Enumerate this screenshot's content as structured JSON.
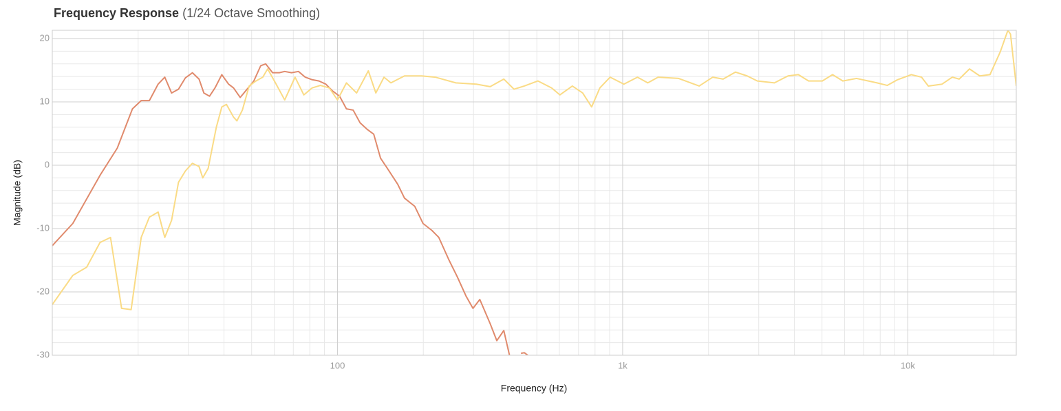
{
  "chart_data": {
    "type": "line",
    "title": "Frequency Response",
    "subtitle": "(1/24 Octave Smoothing)",
    "x_label": "Frequency (Hz)",
    "y_label": "Magnitude (dB)",
    "log_x": true,
    "grid": true,
    "xlim": [
      10,
      24000
    ],
    "ylim": [
      -30,
      21.3
    ],
    "xticks": [
      {
        "value": 100,
        "label": "100"
      },
      {
        "value": 1000,
        "label": "1k"
      },
      {
        "value": 10000,
        "label": "10k"
      }
    ],
    "x_minor_ticks": [
      20,
      30,
      40,
      50,
      60,
      70,
      80,
      90,
      200,
      300,
      400,
      500,
      600,
      700,
      800,
      900,
      2000,
      3000,
      4000,
      5000,
      6000,
      7000,
      8000,
      9000,
      20000
    ],
    "yticks": [
      -30,
      -20,
      -10,
      0,
      10,
      20
    ],
    "y_minor_ticks": [
      -28,
      -26,
      -24,
      -22,
      -18,
      -16,
      -14,
      -12,
      -8,
      -6,
      -4,
      -2,
      2,
      4,
      6,
      8,
      12,
      14,
      16,
      18
    ],
    "series": [
      {
        "color": "#e08a6c",
        "x": [
          10,
          11.8,
          14.7,
          16.9,
          19.1,
          20.5,
          21.9,
          23.5,
          24.8,
          26.2,
          27.7,
          29.3,
          31,
          32.7,
          34,
          35.6,
          37.2,
          39.3,
          41.5,
          43.2,
          45.6,
          48.2,
          50.9,
          53.8,
          56,
          59.2,
          62.5,
          65.3,
          69,
          73,
          77.1,
          81.5,
          86.1,
          91,
          96.2,
          101.7,
          107.5,
          113.5,
          120,
          126.8,
          134,
          141.6,
          149.6,
          162.6,
          171.8,
          186.7,
          199.5,
          214.4,
          226.6,
          246.2,
          263,
          282.6,
          298.6,
          315.6,
          343,
          362,
          383,
          401,
          420,
          440,
          452,
          465,
          480
        ],
        "values": [
          -12.7,
          -9.2,
          -1.6,
          2.7,
          8.9,
          10.2,
          10.2,
          12.8,
          13.9,
          11.4,
          12,
          13.8,
          14.6,
          13.6,
          11.4,
          10.9,
          12.2,
          14.3,
          12.8,
          12.2,
          10.7,
          12,
          13.3,
          15.7,
          16,
          14.6,
          14.6,
          14.8,
          14.6,
          14.8,
          13.9,
          13.5,
          13.3,
          12.8,
          11.7,
          10.9,
          8.9,
          8.7,
          6.7,
          5.7,
          4.9,
          1.1,
          -0.5,
          -3,
          -5.2,
          -6.5,
          -9.2,
          -10.3,
          -11.4,
          -15,
          -17.6,
          -20.7,
          -22.6,
          -21.2,
          -25,
          -27.7,
          -26.1,
          -30,
          null,
          -29.7,
          -29.6,
          -30,
          null
        ]
      },
      {
        "color": "#fadb85",
        "x": [
          10,
          11.8,
          13.2,
          14.7,
          16,
          17.5,
          18.9,
          20.5,
          21.9,
          23.5,
          24.8,
          26.2,
          27.7,
          29.3,
          31,
          32.7,
          33.7,
          35.2,
          37.6,
          39.3,
          40.8,
          43.2,
          44.4,
          46.4,
          49,
          51.8,
          54.7,
          56.9,
          60.1,
          65.3,
          71,
          76.2,
          81.5,
          87.1,
          93.6,
          100,
          107.5,
          116.7,
          128.3,
          136.3,
          145.6,
          153.9,
          171.8,
          197.2,
          220.3,
          260,
          307,
          343,
          383,
          415.9,
          451.9,
          504.6,
          563.5,
          602.6,
          666.2,
          724,
          778.4,
          831.8,
          903.6,
          1010,
          1127,
          1225,
          1331,
          1571,
          1855,
          2070,
          2250,
          2485,
          2731,
          2966,
          3405,
          3802,
          4130,
          4487,
          5012,
          5445,
          5916,
          6607,
          7798,
          8472,
          9204,
          10280,
          11170,
          11800,
          13180,
          14320,
          15140,
          16450,
          17870,
          19410,
          21090,
          22430,
          22910,
          24000
        ],
        "values": [
          -22,
          -17.4,
          -16.1,
          -12.2,
          -11.4,
          -22.6,
          -22.8,
          -11.4,
          -8.2,
          -7.4,
          -11.4,
          -8.7,
          -2.7,
          -0.9,
          0.3,
          -0.2,
          -2,
          -0.5,
          6,
          9.2,
          9.6,
          7.6,
          7,
          8.7,
          12.5,
          13.3,
          13.9,
          15.2,
          13.3,
          10.3,
          13.9,
          11.1,
          12.2,
          12.6,
          12.2,
          10.3,
          13,
          11.4,
          14.9,
          11.4,
          13.9,
          13,
          14.1,
          14.1,
          13.9,
          13,
          12.8,
          12.4,
          13.6,
          12,
          12.5,
          13.3,
          12.2,
          11.1,
          12.5,
          11.4,
          9.2,
          12.2,
          13.9,
          12.8,
          13.9,
          13,
          13.9,
          13.7,
          12.5,
          13.9,
          13.6,
          14.7,
          14.1,
          13.3,
          13,
          14.1,
          14.3,
          13.3,
          13.3,
          14.3,
          13.3,
          13.7,
          13,
          12.6,
          13.5,
          14.3,
          13.9,
          12.5,
          12.8,
          13.9,
          13.6,
          15.2,
          14.1,
          14.3,
          17.9,
          21.3,
          20.7,
          12.5
        ]
      }
    ]
  }
}
